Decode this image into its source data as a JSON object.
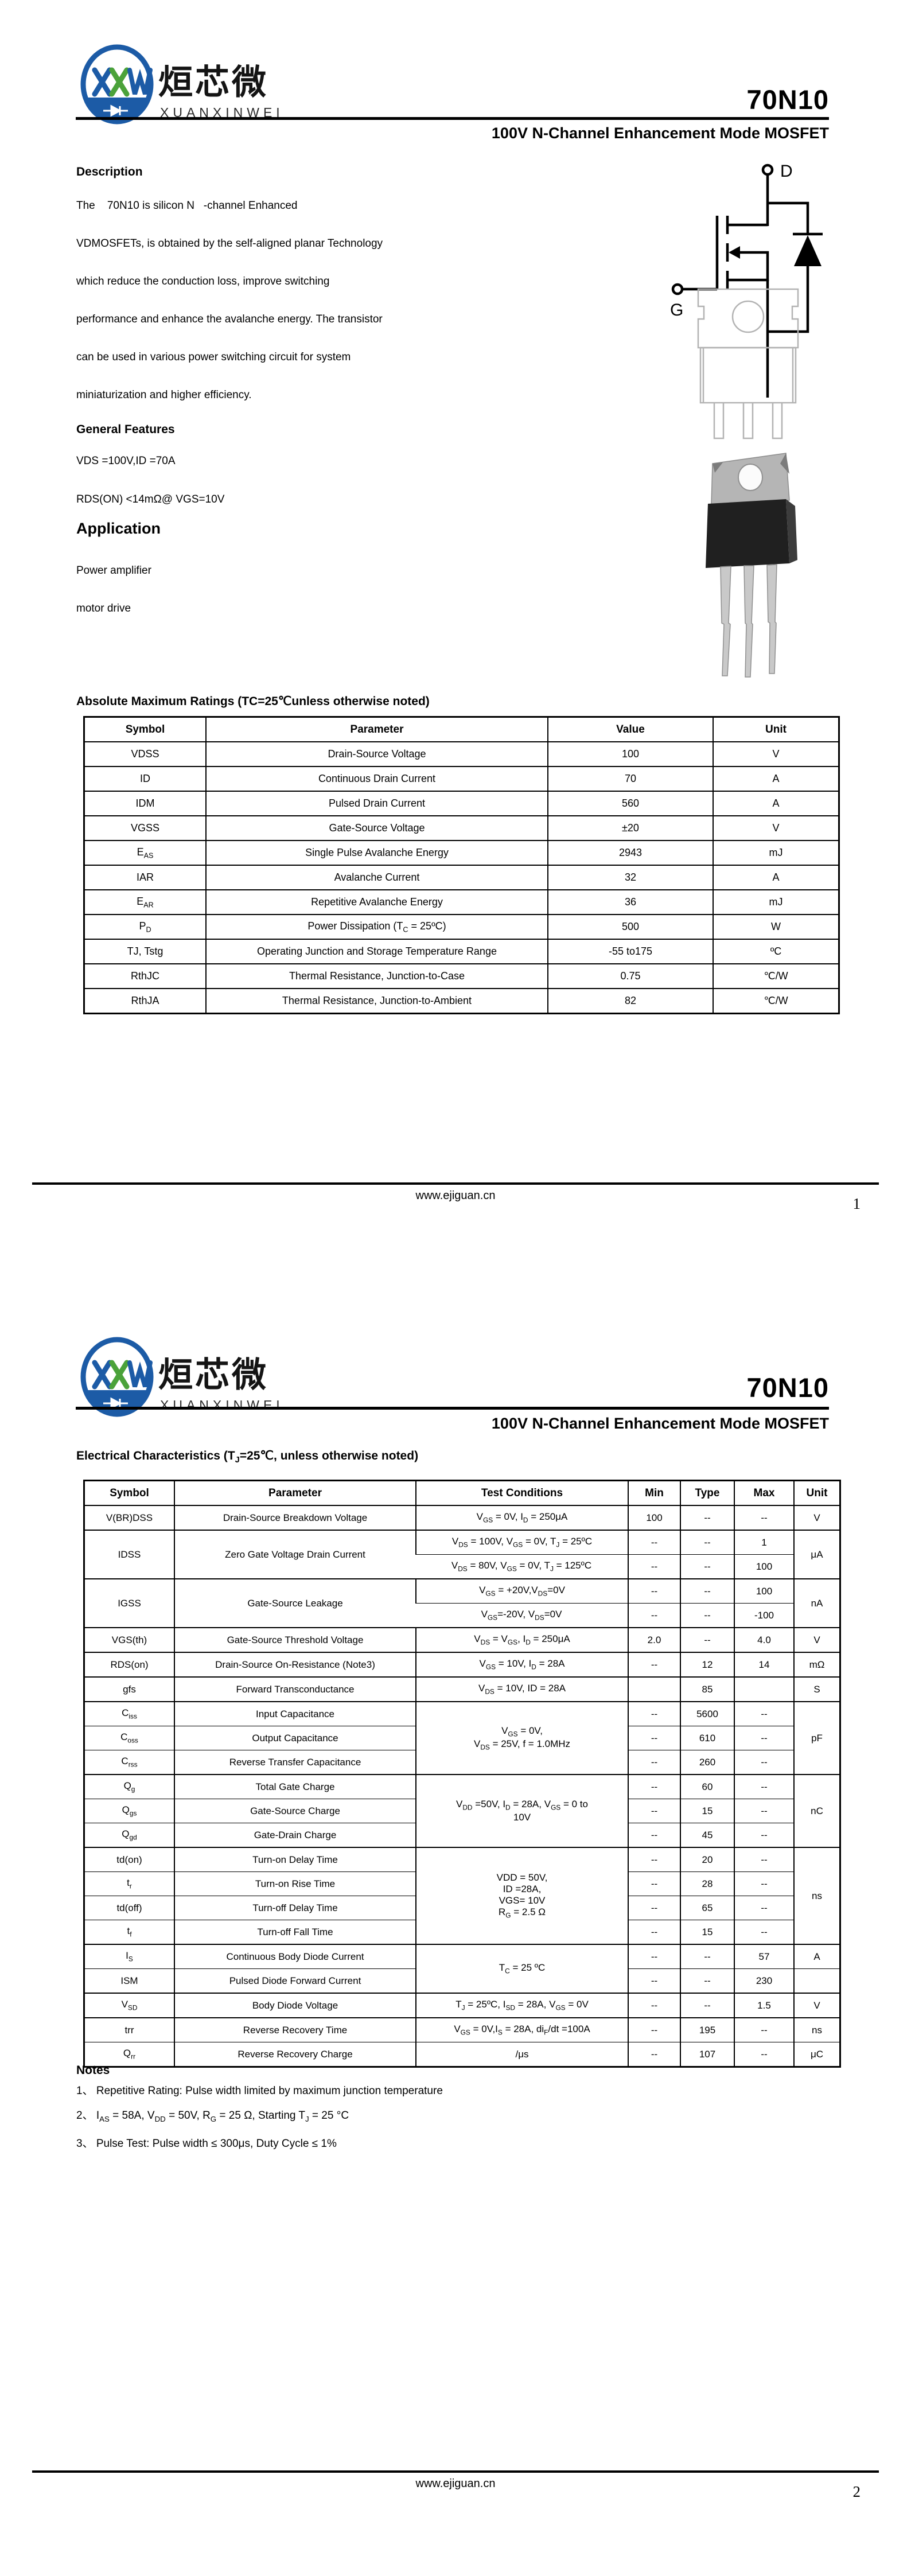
{
  "brand": {
    "cn": "烜芯微",
    "en": "XUANXINWEI",
    "mark_letters": [
      "X",
      "X",
      "W"
    ],
    "blue": "#1c5ba6",
    "green": "#4ba23a"
  },
  "page1": {
    "part_number": "70N10",
    "subtitle": "100V N-Channel Enhancement Mode MOSFET",
    "description": {
      "heading": "Description",
      "lines": [
        "The    70N10 is silicon N   -channel Enhanced",
        "VDMOSFETs, is obtained by the self-aligned planar Technology",
        "which reduce the conduction loss, improve switching",
        "performance and enhance the avalanche energy. The transistor",
        "can be used in various power switching circuit for system",
        "miniaturization and higher efficiency."
      ]
    },
    "general_features": {
      "heading": "General Features",
      "lines": [
        "VDS =100V,ID =70A",
        "RDS(ON) <14mΩ@ VGS=10V"
      ]
    },
    "application": {
      "heading": "Application",
      "lines": [
        "Power amplifier",
        "motor drive"
      ]
    },
    "schematic": {
      "drain_label": "D",
      "gate_label": "G"
    },
    "amr": {
      "heading": "Absolute Maximum Ratings (TC=25℃unless otherwise noted)",
      "columns": [
        "Symbol",
        "Parameter",
        "Value",
        "Unit"
      ],
      "rows": [
        {
          "cells": [
            "VDSS",
            "Drain-Source Voltage",
            "100",
            "V"
          ]
        },
        {
          "cells": [
            "ID",
            "Continuous Drain Current",
            "70",
            "A"
          ]
        },
        {
          "cells": [
            "IDM",
            "Pulsed Drain Current",
            "560",
            "A"
          ]
        },
        {
          "cells": [
            "VGSS",
            "Gate-Source Voltage",
            "±20",
            "V"
          ]
        },
        {
          "cells": [
            "E~AS~",
            "Single Pulse Avalanche Energy",
            "2943",
            "mJ"
          ]
        },
        {
          "cells": [
            "IAR",
            "Avalanche Current",
            "32",
            "A"
          ]
        },
        {
          "cells": [
            "E~AR~",
            "Repetitive Avalanche Energy",
            "36",
            "mJ"
          ]
        },
        {
          "cells": [
            "P~D~",
            "Power Dissipation (T~C~ = 25ºC)",
            "500",
            "W"
          ]
        },
        {
          "cells": [
            "TJ, Tstg",
            "Operating Junction and Storage Temperature Range",
            "-55 to175",
            "ºC"
          ]
        },
        {
          "cells": [
            "RthJC",
            "Thermal Resistance, Junction-to-Case",
            "0.75",
            "℃/W"
          ]
        },
        {
          "cells": [
            "RthJA",
            "Thermal Resistance, Junction-to-Ambient",
            "82",
            "℃/W"
          ]
        }
      ]
    },
    "footer": {
      "site": "www.ejiguan.cn",
      "page_number": "1"
    }
  },
  "page2": {
    "part_number": "70N10",
    "subtitle": "100V N-Channel Enhancement Mode MOSFET",
    "ec": {
      "heading": "Electrical Characteristics (T~J~=25℃, unless otherwise noted)",
      "columns": [
        "Symbol",
        "Parameter",
        "Test Conditions",
        "Min",
        "Type",
        "Max",
        "Unit"
      ],
      "rows": [
        {
          "cells": [
            "V(BR)DSS",
            "Drain-Source Breakdown Voltage",
            "V~GS~ = 0V, I~D~ = 250μA",
            "100",
            "--",
            "--",
            "V"
          ]
        },
        {
          "cells": [
            {
              "t": "IDSS",
              "rs": 2
            },
            {
              "t": "Zero Gate Voltage Drain Current",
              "rs": 2
            },
            "V~DS~ = 100V, V~GS~ = 0V, T~J~ = 25ºC",
            "--",
            "--",
            "1",
            {
              "t": "μA",
              "rs": 2
            }
          ]
        },
        {
          "thin": true,
          "cells": [
            "V~DS~ = 80V, V~GS~ = 0V, T~J~ = 125ºC",
            "--",
            "--",
            "100"
          ]
        },
        {
          "cells": [
            {
              "t": "IGSS",
              "rs": 2
            },
            {
              "t": "Gate-Source Leakage",
              "rs": 2
            },
            "V~GS~ = +20V,V~DS~=0V",
            "--",
            "--",
            "100",
            {
              "t": "nA",
              "rs": 2
            }
          ]
        },
        {
          "thin": true,
          "cells": [
            "V~GS~=-20V, V~DS~=0V",
            "--",
            "--",
            "-100"
          ]
        },
        {
          "cells": [
            "VGS(th)",
            "Gate-Source Threshold Voltage",
            "V~DS~ = V~GS~, I~D~ = 250μA",
            "2.0",
            "--",
            "4.0",
            "V"
          ]
        },
        {
          "cells": [
            "RDS(on)",
            "Drain-Source On-Resistance (Note3)",
            "V~GS~ = 10V, I~D~ = 28A",
            "--",
            "12",
            "14",
            "mΩ"
          ]
        },
        {
          "cells": [
            "gfs",
            "Forward Transconductance",
            "V~DS~ = 10V, ID = 28A",
            "",
            "85",
            "",
            "S"
          ]
        },
        {
          "cells": [
            "C~iss~",
            "Input Capacitance",
            {
              "t": "V~GS~ = 0V,\nV~DS~ = 25V, f = 1.0MHz",
              "rs": 3
            },
            "--",
            "5600",
            "--",
            {
              "t": "pF",
              "rs": 3
            }
          ]
        },
        {
          "thin": true,
          "cells": [
            "C~oss~",
            "Output Capacitance",
            "--",
            "610",
            "--"
          ]
        },
        {
          "thin": true,
          "cells": [
            "C~rss~",
            "Reverse Transfer Capacitance",
            "--",
            "260",
            "--"
          ]
        },
        {
          "cells": [
            "Q~g~",
            "Total Gate Charge",
            {
              "t": "V~DD~ =50V, I~D~ = 28A, V~GS~ = 0 to\n10V",
              "rs": 3
            },
            "--",
            "60",
            "--",
            {
              "t": "nC",
              "rs": 3
            }
          ]
        },
        {
          "thin": true,
          "cells": [
            "Q~gs~",
            "Gate-Source Charge",
            "--",
            "15",
            "--"
          ]
        },
        {
          "thin": true,
          "cells": [
            "Q~gd~",
            "Gate-Drain Charge",
            "--",
            "45",
            "--"
          ]
        },
        {
          "cells": [
            "td(on)",
            "Turn-on Delay Time",
            {
              "t": "VDD = 50V,\nID =28A,\nVGS= 10V\nR~G~ = 2.5 Ω",
              "rs": 4
            },
            "--",
            "20",
            "--",
            {
              "t": "ns",
              "rs": 4
            }
          ]
        },
        {
          "thin": true,
          "cells": [
            "t~r~",
            "Turn-on Rise Time",
            "--",
            "28",
            "--"
          ]
        },
        {
          "thin": true,
          "cells": [
            "td(off)",
            "Turn-off Delay Time",
            "--",
            "65",
            "--"
          ]
        },
        {
          "thin": true,
          "cells": [
            "t~f~",
            "Turn-off Fall Time",
            "--",
            "15",
            "--"
          ]
        },
        {
          "cells": [
            "I~S~",
            "Continuous Body Diode Current",
            {
              "t": "T~C~ = 25 ºC",
              "rs": 2
            },
            "--",
            "--",
            "57",
            "A"
          ]
        },
        {
          "thin": true,
          "cells": [
            "ISM",
            "Pulsed Diode Forward Current",
            "--",
            "--",
            "230",
            ""
          ]
        },
        {
          "cells": [
            "V~SD~",
            "Body Diode Voltage",
            "T~J~ = 25ºC, I~SD~ = 28A, V~GS~ = 0V",
            "--",
            "--",
            "1.5",
            "V"
          ]
        },
        {
          "cells": [
            "trr",
            "Reverse Recovery Time",
            "V~GS~ = 0V,I~S~ = 28A, di~F~/dt =100A",
            "--",
            "195",
            "--",
            "ns"
          ]
        },
        {
          "thin": true,
          "cells": [
            "Q~rr~",
            "Reverse Recovery Charge",
            "/μs",
            "--",
            "107",
            "--",
            "μC"
          ]
        }
      ]
    },
    "notes": {
      "heading": "Notes",
      "items": [
        "1、 Repetitive Rating: Pulse width limited by maximum junction temperature",
        "2、 I~AS~ = 58A, V~DD~ = 50V, R~G~ = 25 Ω, Starting T~J~ = 25 °C",
        "3、 Pulse Test: Pulse width ≤ 300μs, Duty Cycle ≤ 1%"
      ]
    },
    "footer": {
      "site": "www.ejiguan.cn",
      "page_number": "2"
    }
  }
}
